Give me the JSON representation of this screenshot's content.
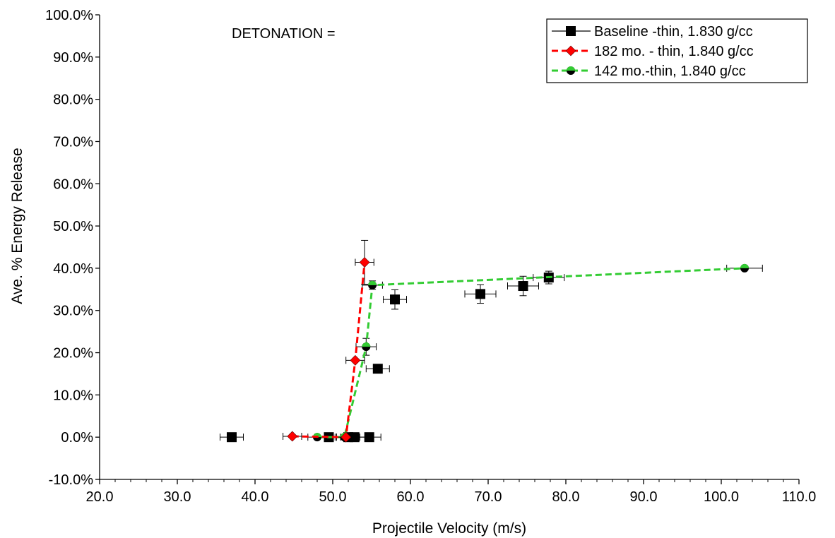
{
  "chart_data": {
    "type": "scatter",
    "annotation": "DETONATION =",
    "xlabel": "Projectile Velocity (m/s)",
    "ylabel": "Ave. % Energy Release",
    "xlim": [
      20,
      110
    ],
    "ylim": [
      -10,
      100
    ],
    "x_ticks": [
      "20.0",
      "30.0",
      "40.0",
      "50.0",
      "60.0",
      "70.0",
      "80.0",
      "90.0",
      "100.0",
      "110.0"
    ],
    "y_ticks": [
      "-10.0%",
      "0.0%",
      "10.0%",
      "20.0%",
      "30.0%",
      "40.0%",
      "50.0%",
      "60.0%",
      "70.0%",
      "80.0%",
      "90.0%",
      "100.0%"
    ],
    "legend_position": "top-right",
    "grid": false,
    "series": [
      {
        "name": "Baseline -thin, 1.830 g/cc",
        "color": "#000000",
        "marker": "square",
        "line": "none",
        "points": [
          {
            "x": 37.0,
            "y": 0.0,
            "xerr": 1.5,
            "yerr": 0
          },
          {
            "x": 49.5,
            "y": 0.0,
            "xerr": 1.5,
            "yerr": 0
          },
          {
            "x": 52.0,
            "y": 0.0,
            "xerr": 1.5,
            "yerr": 0
          },
          {
            "x": 52.8,
            "y": 0.0,
            "xerr": 1.5,
            "yerr": 0
          },
          {
            "x": 54.7,
            "y": 0.0,
            "xerr": 1.5,
            "yerr": 0
          },
          {
            "x": 55.8,
            "y": 16.2,
            "xerr": 1.5,
            "yerr": 0
          },
          {
            "x": 58.0,
            "y": 32.6,
            "xerr": 1.5,
            "yerr": 2.3
          },
          {
            "x": 69.0,
            "y": 33.9,
            "xerr": 2.0,
            "yerr": 2.2
          },
          {
            "x": 74.5,
            "y": 35.8,
            "xerr": 2.0,
            "yerr": 2.3
          },
          {
            "x": 77.8,
            "y": 37.8,
            "xerr": 2.0,
            "yerr": 1.5
          }
        ]
      },
      {
        "name": "182 mo. - thin,  1.840 g/cc",
        "color": "#ff0000",
        "marker": "diamond",
        "line": "dashed",
        "points": [
          {
            "x": 44.8,
            "y": 0.2,
            "xerr": 1.2,
            "yerr": 0
          },
          {
            "x": 51.7,
            "y": 0.0,
            "xerr": 1.2,
            "yerr": 0
          },
          {
            "x": 52.9,
            "y": 18.2,
            "xerr": 1.2,
            "yerr": 0
          },
          {
            "x": 54.1,
            "y": 41.4,
            "xerr": 1.2,
            "yerr": 5.2
          }
        ]
      },
      {
        "name": "142 mo.-thin, 1.840 g/cc",
        "color": "#33cc33",
        "marker": "circle",
        "line": "dashed",
        "points": [
          {
            "x": 48.0,
            "y": 0.0,
            "xerr": 1.2,
            "yerr": 0
          },
          {
            "x": 51.5,
            "y": 0.0,
            "xerr": 1.2,
            "yerr": 0
          },
          {
            "x": 54.3,
            "y": 21.4,
            "xerr": 1.3,
            "yerr": 2.0
          },
          {
            "x": 55.1,
            "y": 36.0,
            "xerr": 1.3,
            "yerr": 1.0
          },
          {
            "x": 103.0,
            "y": 40.0,
            "xerr": 2.3,
            "yerr": 0
          }
        ]
      }
    ]
  }
}
